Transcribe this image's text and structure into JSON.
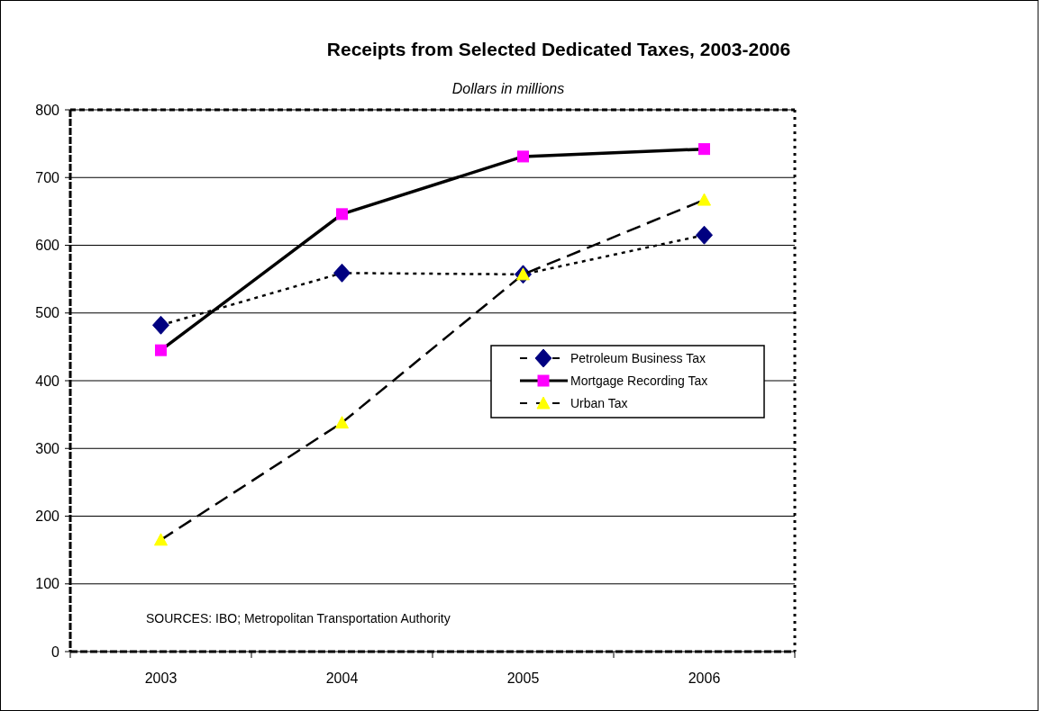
{
  "chart_data": {
    "type": "line",
    "title": "Receipts from Selected Dedicated Taxes, 2003-2006",
    "subtitle": "Dollars in millions",
    "categories": [
      "2003",
      "2004",
      "2005",
      "2006"
    ],
    "series": [
      {
        "name": "Petroleum Business Tax",
        "color": "#000080",
        "values": [
          482,
          559,
          557,
          615
        ],
        "marker": "diamond",
        "line_style": "dotted"
      },
      {
        "name": "Mortgage Recording Tax",
        "color": "#ff00ff",
        "values": [
          445,
          646,
          731,
          742
        ],
        "marker": "square",
        "line_style": "solid"
      },
      {
        "name": "Urban Tax",
        "color": "#ffff00",
        "values": [
          165,
          338,
          557,
          667
        ],
        "marker": "triangle",
        "line_style": "dashed"
      }
    ],
    "ylim": [
      0,
      800
    ],
    "yticks": [
      0,
      100,
      200,
      300,
      400,
      500,
      600,
      700,
      800
    ],
    "grid": "y",
    "legend": "right",
    "annotations": [
      "SOURCES: IBO; Metropolitan Transportation Authority"
    ]
  }
}
